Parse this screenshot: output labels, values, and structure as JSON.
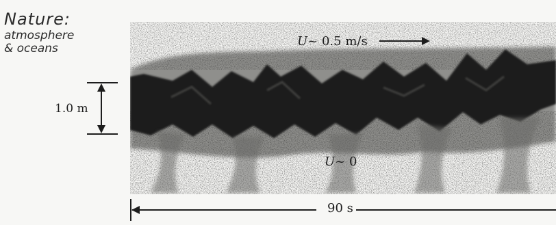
{
  "handwritten_note": {
    "line1": "Nature:",
    "line2": "atmosphere",
    "line3": "& oceans"
  },
  "labels": {
    "upper_velocity_symbol": "U",
    "upper_velocity_value": "~ 0.5 m/s",
    "lower_velocity_symbol": "U",
    "lower_velocity_value": "~ 0",
    "scale_height": "1.0 m",
    "time_span": "90 s"
  },
  "colors": {
    "ink": "#1d1d1d",
    "paper": "#f7f7f5"
  }
}
